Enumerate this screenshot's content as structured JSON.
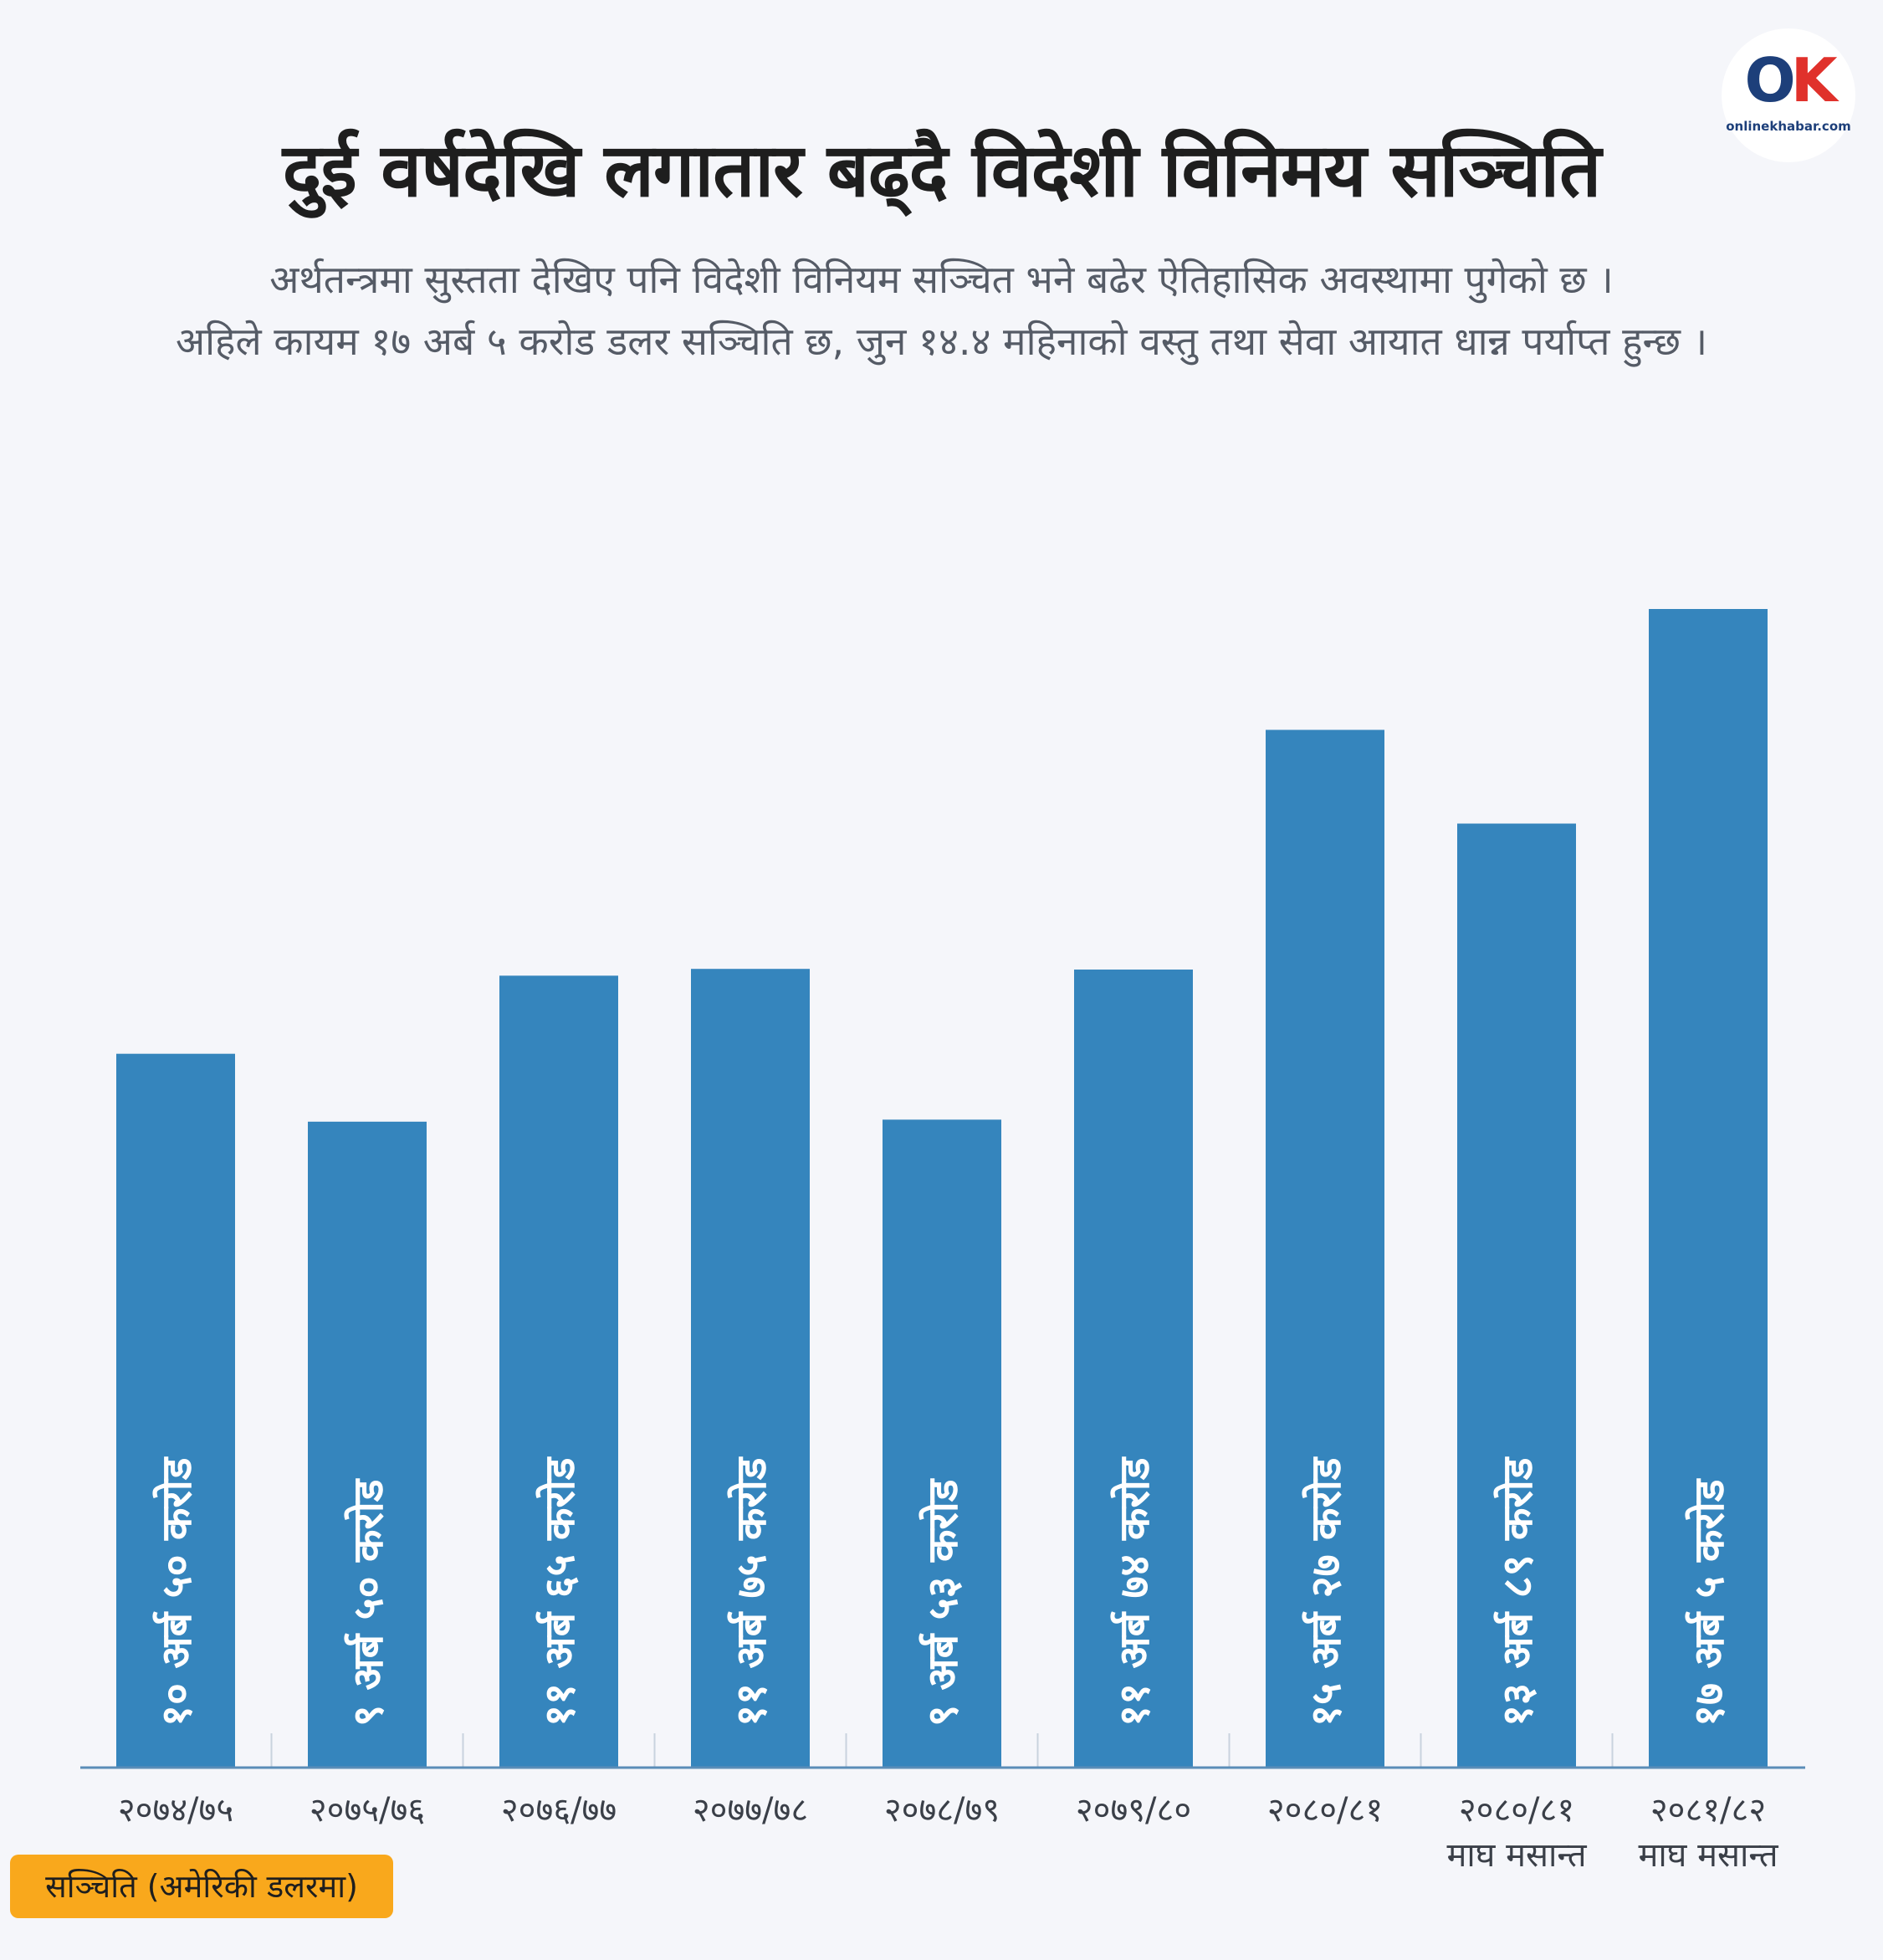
{
  "header": {
    "title": "दुई वर्षदेखि लगातार बढ्दै विदेशी विनिमय सञ्चिति",
    "subtitle_line1": "अर्थतन्त्रमा सुस्तता देखिए पनि विदेशी विनियम सञ्चित भने बढेर ऐतिहासिक अवस्थामा पुगेको छ ।",
    "subtitle_line2": "अहिले कायम १७ अर्ब ५ करोड डलर सञ्चिति छ, जुन १४.४ महिनाको वस्तु तथा सेवा आयात धान्न पर्याप्त हुन्छ ।"
  },
  "logo": {
    "letters_o": "O",
    "letters_k": "K",
    "text": "onlinekhabar.com"
  },
  "legend": {
    "label": "सञ्चिति (अमेरिकी डलरमा)"
  },
  "colors": {
    "bar": "#3585bd",
    "background": "#f5f6fa",
    "axis": "#5a8db8",
    "legend_bg": "#f9a81c"
  },
  "chart_data": {
    "type": "bar",
    "categories": [
      [
        "२०७४/७५"
      ],
      [
        "२०७५/७६"
      ],
      [
        "२०७६/७७"
      ],
      [
        "२०७७/७८"
      ],
      [
        "२०७८/७९"
      ],
      [
        "२०७९/८०"
      ],
      [
        "२०८०/८१"
      ],
      [
        "२०८०/८१",
        "माघ मसान्त"
      ],
      [
        "२०८१/८२",
        "माघ मसान्त"
      ]
    ],
    "values": [
      10.5,
      9.5,
      11.65,
      11.75,
      9.53,
      11.74,
      15.27,
      13.89,
      17.05
    ],
    "value_labels": [
      "१० अर्ब ५० करोड",
      "९ अर्ब ५० करोड",
      "११ अर्ब ६५ करोड",
      "११ अर्ब ७५ करोड",
      "९ अर्ब ५३ करोड",
      "११ अर्ब ७४ करोड",
      "१५ अर्ब २७ करोड",
      "१३ अर्ब ८९ करोड",
      "१७ अर्ब ५ करोड"
    ],
    "unit": "अर्ब अमेरिकी डलर",
    "ylim": [
      0,
      17.05
    ],
    "grid": false,
    "legend_position": "bottom-left"
  }
}
